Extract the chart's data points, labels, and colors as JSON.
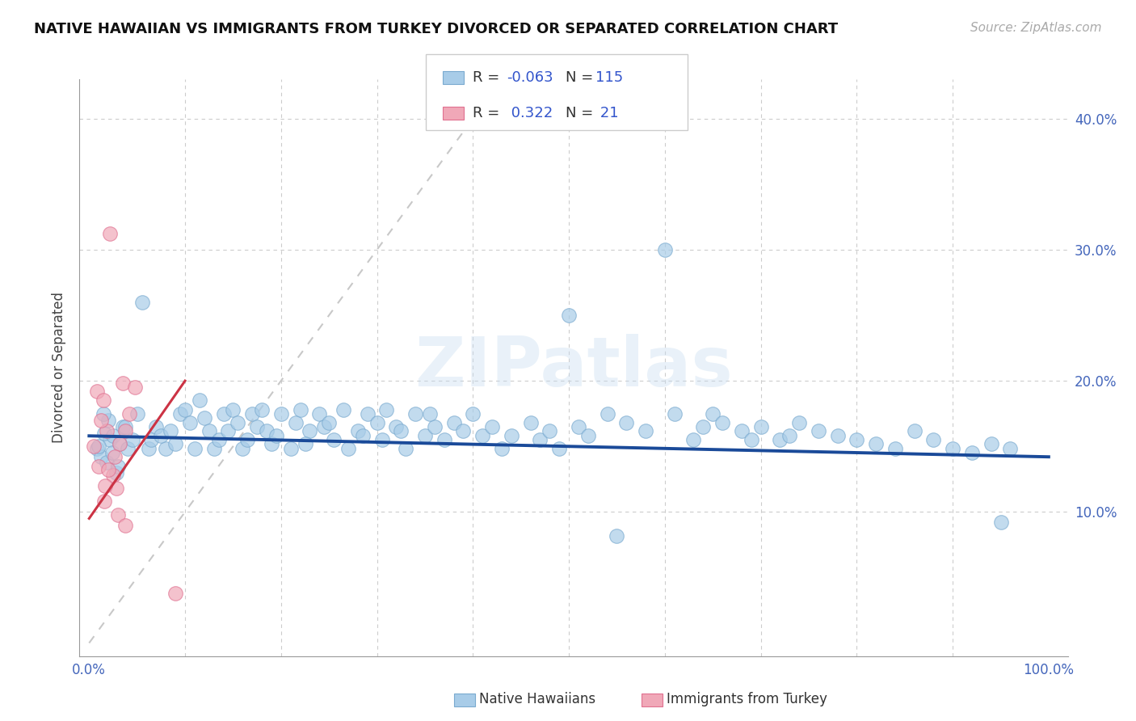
{
  "title": "NATIVE HAWAIIAN VS IMMIGRANTS FROM TURKEY DIVORCED OR SEPARATED CORRELATION CHART",
  "source_text": "Source: ZipAtlas.com",
  "ylabel": "Divorced or Separated",
  "xlim": [
    -0.01,
    1.02
  ],
  "ylim": [
    -0.01,
    0.43
  ],
  "xtick_pos": [
    0.0,
    0.1,
    0.2,
    0.3,
    0.4,
    0.5,
    0.6,
    0.7,
    0.8,
    0.9,
    1.0
  ],
  "ytick_pos": [
    0.0,
    0.1,
    0.2,
    0.3,
    0.4
  ],
  "ytick_labels": [
    "",
    "10.0%",
    "20.0%",
    "30.0%",
    "40.0%"
  ],
  "legend_r1": "-0.063",
  "legend_n1": "115",
  "legend_r2": "0.322",
  "legend_n2": "21",
  "blue_color": "#a8cce8",
  "pink_color": "#f0a8b8",
  "blue_edge_color": "#7aaacf",
  "pink_edge_color": "#e07090",
  "blue_line_color": "#1a4a99",
  "pink_line_color": "#cc3344",
  "ref_line_color": "#c8c8c8",
  "blue_dots_x": [
    0.008,
    0.012,
    0.018,
    0.022,
    0.028,
    0.01,
    0.016,
    0.024,
    0.03,
    0.035,
    0.02,
    0.025,
    0.015,
    0.032,
    0.04,
    0.05,
    0.045,
    0.038,
    0.055,
    0.062,
    0.07,
    0.065,
    0.08,
    0.075,
    0.085,
    0.095,
    0.09,
    0.1,
    0.11,
    0.105,
    0.115,
    0.12,
    0.13,
    0.125,
    0.14,
    0.135,
    0.15,
    0.145,
    0.16,
    0.155,
    0.17,
    0.165,
    0.175,
    0.18,
    0.19,
    0.185,
    0.2,
    0.195,
    0.21,
    0.215,
    0.22,
    0.23,
    0.225,
    0.24,
    0.245,
    0.255,
    0.25,
    0.265,
    0.27,
    0.28,
    0.29,
    0.285,
    0.3,
    0.31,
    0.305,
    0.32,
    0.33,
    0.325,
    0.34,
    0.35,
    0.36,
    0.355,
    0.37,
    0.38,
    0.39,
    0.4,
    0.41,
    0.42,
    0.43,
    0.44,
    0.46,
    0.47,
    0.48,
    0.49,
    0.5,
    0.51,
    0.52,
    0.54,
    0.55,
    0.56,
    0.58,
    0.6,
    0.61,
    0.63,
    0.64,
    0.65,
    0.66,
    0.68,
    0.69,
    0.7,
    0.72,
    0.73,
    0.74,
    0.76,
    0.78,
    0.8,
    0.82,
    0.84,
    0.86,
    0.88,
    0.9,
    0.92,
    0.94,
    0.96,
    0.95
  ],
  "blue_dots_y": [
    0.148,
    0.142,
    0.138,
    0.155,
    0.13,
    0.15,
    0.16,
    0.145,
    0.135,
    0.165,
    0.17,
    0.158,
    0.175,
    0.152,
    0.148,
    0.175,
    0.155,
    0.165,
    0.26,
    0.148,
    0.165,
    0.155,
    0.148,
    0.158,
    0.162,
    0.175,
    0.152,
    0.178,
    0.148,
    0.168,
    0.185,
    0.172,
    0.148,
    0.162,
    0.175,
    0.155,
    0.178,
    0.162,
    0.148,
    0.168,
    0.175,
    0.155,
    0.165,
    0.178,
    0.152,
    0.162,
    0.175,
    0.158,
    0.148,
    0.168,
    0.178,
    0.162,
    0.152,
    0.175,
    0.165,
    0.155,
    0.168,
    0.178,
    0.148,
    0.162,
    0.175,
    0.158,
    0.168,
    0.178,
    0.155,
    0.165,
    0.148,
    0.162,
    0.175,
    0.158,
    0.165,
    0.175,
    0.155,
    0.168,
    0.162,
    0.175,
    0.158,
    0.165,
    0.148,
    0.158,
    0.168,
    0.155,
    0.162,
    0.148,
    0.25,
    0.165,
    0.158,
    0.175,
    0.082,
    0.168,
    0.162,
    0.3,
    0.175,
    0.155,
    0.165,
    0.175,
    0.168,
    0.162,
    0.155,
    0.165,
    0.155,
    0.158,
    0.168,
    0.162,
    0.158,
    0.155,
    0.152,
    0.148,
    0.162,
    0.155,
    0.148,
    0.145,
    0.152,
    0.148,
    0.092
  ],
  "pink_dots_x": [
    0.005,
    0.01,
    0.022,
    0.008,
    0.015,
    0.025,
    0.035,
    0.018,
    0.012,
    0.028,
    0.016,
    0.03,
    0.038,
    0.02,
    0.032,
    0.042,
    0.017,
    0.027,
    0.048,
    0.038,
    0.09
  ],
  "pink_dots_y": [
    0.15,
    0.135,
    0.312,
    0.192,
    0.185,
    0.128,
    0.198,
    0.162,
    0.17,
    0.118,
    0.108,
    0.098,
    0.162,
    0.132,
    0.152,
    0.175,
    0.12,
    0.142,
    0.195,
    0.09,
    0.038
  ],
  "blue_trend_x0": 0.0,
  "blue_trend_x1": 1.0,
  "blue_trend_y0": 0.158,
  "blue_trend_y1": 0.142,
  "pink_trend_x0": 0.0,
  "pink_trend_x1": 0.1,
  "pink_trend_y0": 0.095,
  "pink_trend_y1": 0.2,
  "ref_line_x0": 0.0,
  "ref_line_x1": 0.42,
  "ref_line_y0": 0.0,
  "ref_line_y1": 0.42
}
